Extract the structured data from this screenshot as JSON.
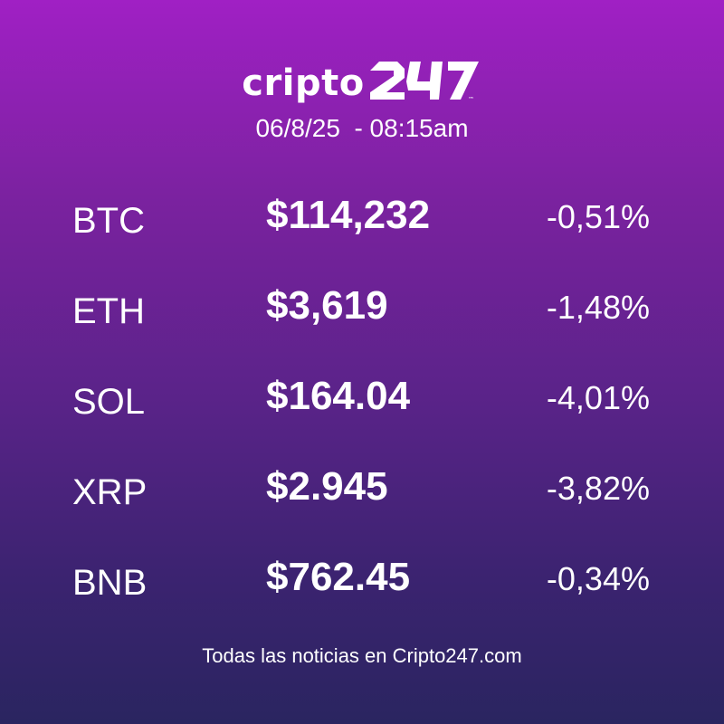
{
  "brand": {
    "word": "cripto",
    "mark": "247",
    "mark_icon": "cripto247-numeral-logo",
    "trademark": "™"
  },
  "datetime": "06/8/25  - 08:15am",
  "rows": [
    {
      "symbol": "BTC",
      "price": "$114,232",
      "change": "-0,51%"
    },
    {
      "symbol": "ETH",
      "price": "$3,619",
      "change": "-1,48%"
    },
    {
      "symbol": "SOL",
      "price": "$164.04",
      "change": "-4,01%"
    },
    {
      "symbol": "XRP",
      "price": "$2.945",
      "change": "-3,82%"
    },
    {
      "symbol": "BNB",
      "price": "$762.45",
      "change": "-0,34%"
    }
  ],
  "footer": "Todas las noticias en Cripto247.com",
  "colors": {
    "gradient_top": "#a020c4",
    "gradient_bottom": "#2a2560",
    "text": "#ffffff"
  }
}
